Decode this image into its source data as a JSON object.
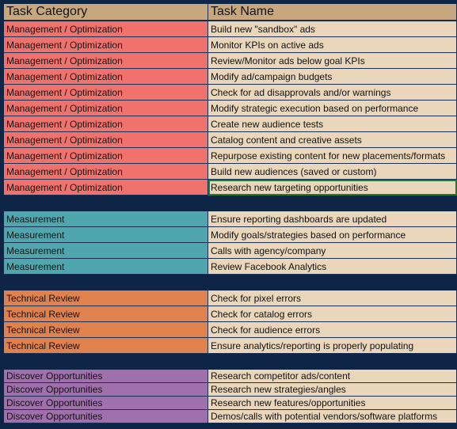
{
  "header": {
    "col_a": "Task Category",
    "col_b": "Task Name"
  },
  "colors": {
    "header": "#c9a77e",
    "task_bg": "#ead6ba",
    "background": "#0f2545",
    "Management / Optimization": "#f0726c",
    "Measurement": "#4fa6ad",
    "Technical Review": "#e0824d",
    "Discover Opportunities": "#9f70ab"
  },
  "groups": [
    {
      "category": "Management / Optimization",
      "tasks": [
        "Build new \"sandbox\" ads",
        "Monitor KPIs on active ads",
        "Review/Monitor ads below goal KPIs",
        "Modify ad/campaign budgets",
        "Check for ad disapprovals and/or warnings",
        "Modify strategic execution based on performance",
        "Create new audience tests",
        "Catalog content and creative assets",
        "Repurpose existing content for new placements/formats",
        "Build new audiences (saved or custom)",
        "Research new targeting opportunities"
      ]
    },
    {
      "category": "Measurement",
      "tasks": [
        "Ensure reporting dashboards are updated",
        "Modify goals/strategies based on performance",
        "Calls with agency/company",
        "Review Facebook Analytics"
      ]
    },
    {
      "category": "Technical Review",
      "tasks": [
        "Check for pixel errors",
        "Check for catalog errors",
        "Check for audience errors",
        "Ensure analytics/reporting is properly populating"
      ]
    },
    {
      "category": "Discover Opportunities",
      "tasks": [
        "Research competitor ads/content",
        "Research new strategies/angles",
        "Research new features/opportunities",
        "Demos/calls with potential vendors/software platforms"
      ]
    }
  ]
}
